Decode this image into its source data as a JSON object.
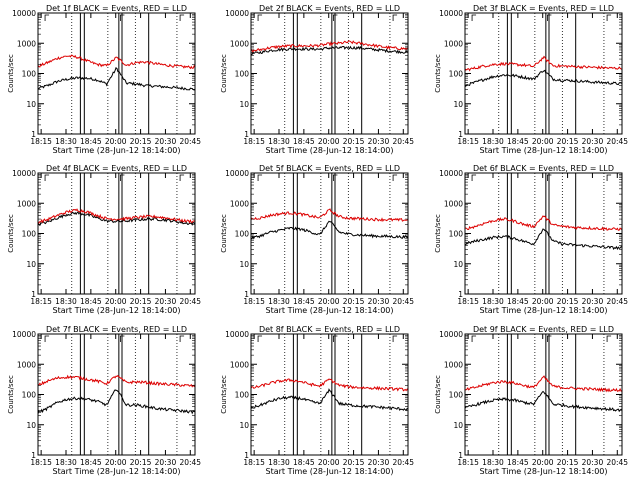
{
  "figure": {
    "xlabel": "Start Time (28-Jun-12 18:14:00)",
    "ylabel": "Counts/sec",
    "x_tick_labels": [
      "18:15",
      "18:30",
      "18:45",
      "20:00",
      "20:15",
      "20:30",
      "20:45"
    ],
    "y_tick_labels": [
      "1",
      "10",
      "100",
      "1000",
      "10000"
    ],
    "colors": {
      "events": "#000000",
      "lld": "#dd0000"
    }
  },
  "chart_data": [
    {
      "type": "line",
      "title": "Det 1f BLACK = Events, RED = LLD",
      "ylim": [
        1,
        10000
      ],
      "yscale": "log",
      "series": [
        {
          "name": "Events",
          "color": "#000000",
          "values": [
            32,
            40,
            55,
            65,
            72,
            70,
            62,
            45,
            150,
            48,
            45,
            40,
            38,
            36,
            34,
            32,
            30
          ]
        },
        {
          "name": "LLD",
          "color": "#dd0000",
          "values": [
            170,
            230,
            320,
            380,
            350,
            260,
            200,
            180,
            340,
            190,
            230,
            240,
            210,
            190,
            175,
            165,
            160
          ]
        }
      ]
    },
    {
      "type": "line",
      "title": "Det 2f BLACK = Events, RED = LLD",
      "ylim": [
        1,
        10000
      ],
      "yscale": "log",
      "series": [
        {
          "name": "Events",
          "color": "#000000",
          "values": [
            450,
            500,
            580,
            620,
            650,
            650,
            640,
            640,
            700,
            700,
            720,
            700,
            650,
            600,
            560,
            530,
            500
          ]
        },
        {
          "name": "LLD",
          "color": "#dd0000",
          "values": [
            550,
            620,
            720,
            780,
            820,
            820,
            820,
            850,
            950,
            1000,
            1100,
            1000,
            900,
            800,
            720,
            680,
            650
          ]
        }
      ]
    },
    {
      "type": "line",
      "title": "Det 3f BLACK = Events, RED = LLD",
      "ylim": [
        1,
        10000
      ],
      "yscale": "log",
      "series": [
        {
          "name": "Events",
          "color": "#000000",
          "values": [
            40,
            50,
            65,
            80,
            90,
            85,
            75,
            65,
            130,
            65,
            60,
            58,
            55,
            52,
            50,
            48,
            45
          ]
        },
        {
          "name": "LLD",
          "color": "#dd0000",
          "values": [
            130,
            150,
            180,
            200,
            210,
            200,
            190,
            170,
            340,
            180,
            175,
            170,
            165,
            160,
            155,
            150,
            150
          ]
        }
      ]
    },
    {
      "type": "line",
      "title": "Det 4f BLACK = Events, RED = LLD",
      "ylim": [
        1,
        10000
      ],
      "yscale": "log",
      "series": [
        {
          "name": "Events",
          "color": "#000000",
          "values": [
            200,
            240,
            330,
            430,
            480,
            420,
            330,
            260,
            250,
            260,
            280,
            300,
            300,
            280,
            250,
            220,
            210
          ]
        },
        {
          "name": "LLD",
          "color": "#dd0000",
          "values": [
            240,
            290,
            400,
            520,
            600,
            520,
            400,
            310,
            300,
            310,
            340,
            360,
            360,
            330,
            290,
            260,
            250
          ]
        }
      ]
    },
    {
      "type": "line",
      "title": "Det 5f BLACK = Events, RED = LLD",
      "ylim": [
        1,
        10000
      ],
      "yscale": "log",
      "series": [
        {
          "name": "Events",
          "color": "#000000",
          "values": [
            70,
            85,
            110,
            130,
            150,
            140,
            115,
            90,
            260,
            110,
            95,
            90,
            85,
            82,
            80,
            78,
            75
          ]
        },
        {
          "name": "LLD",
          "color": "#dd0000",
          "values": [
            300,
            330,
            400,
            450,
            480,
            440,
            380,
            330,
            600,
            360,
            320,
            310,
            300,
            290,
            285,
            280,
            280
          ]
        }
      ]
    },
    {
      "type": "line",
      "title": "Det 6f BLACK = Events, RED = LLD",
      "ylim": [
        1,
        10000
      ],
      "yscale": "log",
      "series": [
        {
          "name": "Events",
          "color": "#000000",
          "values": [
            45,
            55,
            65,
            75,
            80,
            70,
            55,
            45,
            150,
            55,
            45,
            42,
            40,
            38,
            36,
            34,
            33
          ]
        },
        {
          "name": "LLD",
          "color": "#dd0000",
          "values": [
            140,
            170,
            220,
            270,
            300,
            260,
            200,
            170,
            380,
            190,
            170,
            160,
            155,
            150,
            145,
            140,
            140
          ]
        }
      ]
    },
    {
      "type": "line",
      "title": "Det 7f BLACK = Events, RED = LLD",
      "ylim": [
        1,
        10000
      ],
      "yscale": "log",
      "series": [
        {
          "name": "Events",
          "color": "#000000",
          "values": [
            25,
            35,
            55,
            70,
            75,
            70,
            60,
            45,
            160,
            45,
            45,
            40,
            35,
            32,
            30,
            28,
            26
          ]
        },
        {
          "name": "LLD",
          "color": "#dd0000",
          "values": [
            200,
            280,
            350,
            380,
            370,
            320,
            280,
            230,
            420,
            250,
            260,
            250,
            230,
            220,
            210,
            200,
            190
          ]
        }
      ]
    },
    {
      "type": "line",
      "title": "Det 8f BLACK = Events, RED = LLD",
      "ylim": [
        1,
        10000
      ],
      "yscale": "log",
      "series": [
        {
          "name": "Events",
          "color": "#000000",
          "values": [
            35,
            45,
            60,
            75,
            80,
            75,
            60,
            50,
            140,
            50,
            45,
            42,
            40,
            38,
            36,
            34,
            32
          ]
        },
        {
          "name": "LLD",
          "color": "#dd0000",
          "values": [
            160,
            190,
            240,
            280,
            300,
            270,
            220,
            190,
            320,
            200,
            180,
            170,
            165,
            160,
            155,
            150,
            145
          ]
        }
      ]
    },
    {
      "type": "line",
      "title": "Det 9f BLACK = Events, RED = LLD",
      "ylim": [
        1,
        10000
      ],
      "yscale": "log",
      "series": [
        {
          "name": "Events",
          "color": "#000000",
          "values": [
            35,
            45,
            55,
            65,
            70,
            65,
            55,
            48,
            130,
            48,
            44,
            40,
            38,
            36,
            34,
            32,
            30
          ]
        },
        {
          "name": "LLD",
          "color": "#dd0000",
          "values": [
            140,
            170,
            210,
            250,
            270,
            240,
            200,
            170,
            380,
            185,
            170,
            160,
            155,
            150,
            145,
            140,
            140
          ]
        }
      ]
    }
  ]
}
